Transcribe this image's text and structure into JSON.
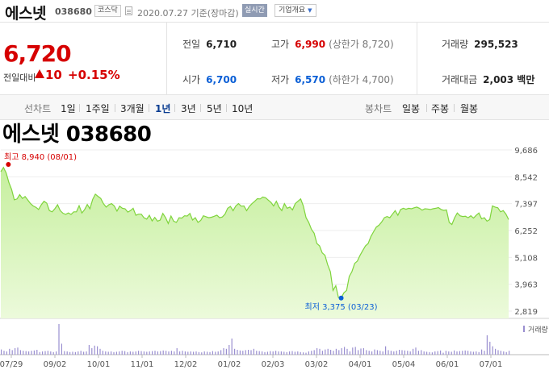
{
  "header": {
    "stock_name": "에스넷",
    "stock_code": "038680",
    "market": "코스닥",
    "date_text": "2020.07.27 기준(장마감)",
    "realtime_label": "실시간",
    "company_overview_label": "기업개요"
  },
  "price": {
    "current": "6,720",
    "change_label": "전일대비",
    "change_value": "10",
    "change_rate": "+0.15%"
  },
  "stats": {
    "prev_close_label": "전일",
    "prev_close": "6,710",
    "open_label": "시가",
    "open": "6,700",
    "high_label": "고가",
    "high": "6,990",
    "upper_limit": "(상한가 8,720)",
    "low_label": "저가",
    "low": "6,570",
    "lower_limit": "(하한가 4,700)",
    "volume_label": "거래량",
    "volume": "295,523",
    "amount_label": "거래대금",
    "amount": "2,003 백만"
  },
  "tabs": {
    "line_group": "선차트",
    "line_periods": [
      "1일",
      "1주일",
      "3개월",
      "1년",
      "3년",
      "5년",
      "10년"
    ],
    "active_period": "1년",
    "candle_group": "봉차트",
    "candle_periods": [
      "일봉",
      "주봉",
      "월봉"
    ]
  },
  "colors": {
    "price_up": "#d60000",
    "price_down": "#0b5fd6",
    "area_fill_top": "#c6ef9e",
    "area_fill_bottom": "#ecfadb",
    "line": "#7fd43c",
    "volume_bar": "#9a8fd0"
  },
  "chart_data": {
    "type": "area",
    "title": "에스넷 038680",
    "x_tick_labels": [
      "07/29",
      "09/02",
      "10/01",
      "11/01",
      "12/02",
      "01/02",
      "02/03",
      "03/02",
      "04/01",
      "05/04",
      "06/01",
      "07/01"
    ],
    "y_ticks": [
      9686,
      8542,
      7397,
      6252,
      5108,
      3963,
      2819
    ],
    "y_tick_labels": [
      "9,686",
      "8,542",
      "7,397",
      "6,252",
      "5,108",
      "3,963",
      "2,819"
    ],
    "ylim": [
      2819,
      9686
    ],
    "high_label": "최고 8,940 (08/01)",
    "low_label": "최저 3,375 (03/23)",
    "series": [
      {
        "values": [
          8760,
          8940,
          8700,
          8300,
          8000,
          7560,
          7600,
          7780,
          7620,
          7700,
          7550,
          7400,
          7300,
          7240,
          7150,
          7350,
          7500,
          7420,
          7100,
          7050,
          7180,
          7350,
          7100,
          6990,
          6940,
          7000,
          6940,
          7050,
          7050,
          7310,
          7000,
          7140,
          7360,
          7180,
          7580,
          7800,
          7710,
          7620,
          7400,
          7250,
          7350,
          7400,
          7300,
          7080,
          7290,
          7200,
          7180,
          7040,
          7100,
          7200,
          6900,
          6950,
          6950,
          6800,
          6740,
          6900,
          6660,
          6810,
          6650,
          6700,
          6980,
          6800,
          6550,
          6870,
          6650,
          6600,
          6800,
          6780,
          6880,
          6870,
          6980,
          6700,
          6800,
          6600,
          6680,
          6880,
          6840,
          6800,
          6820,
          6860,
          6910,
          6800,
          6830,
          6950,
          7200,
          7280,
          7100,
          7300,
          7400,
          7290,
          7300,
          7100,
          7280,
          7400,
          7500,
          7610,
          7600,
          7680,
          7650,
          7550,
          7450,
          7300,
          7500,
          7250,
          7100,
          7400,
          7200,
          7250,
          7130,
          7400,
          7500,
          7600,
          7300,
          6800,
          6600,
          6300,
          6140,
          5700,
          5600,
          5300,
          5200,
          4800,
          4500,
          3700,
          3900,
          3400,
          3375,
          3600,
          3700,
          4300,
          4500,
          4850,
          4950,
          5200,
          5400,
          5600,
          5700,
          6000,
          6200,
          6400,
          6480,
          6620,
          6800,
          6850,
          6800,
          6950,
          7100,
          6900,
          7150,
          7200,
          7160,
          7200,
          7180,
          7220,
          7250,
          7200,
          7120,
          7180,
          7170,
          7150,
          7180,
          7200,
          7230,
          7150,
          7110,
          7130,
          6600,
          6510,
          6800,
          7000,
          6880,
          6850,
          6860,
          6800,
          6880,
          6780,
          6900,
          7000,
          6750,
          6800,
          6650,
          6720,
          7300,
          7250,
          7220,
          7050,
          7100,
          6950,
          6720
        ]
      }
    ],
    "volume_series_label": "거래량",
    "volume": [
      0.16,
      0.12,
      0.1,
      0.18,
      0.14,
      0.2,
      0.22,
      0.14,
      0.12,
      0.11,
      0.1,
      0.12,
      0.13,
      0.15,
      0.08,
      0.1,
      0.11,
      0.12,
      0.1,
      0.08,
      0.1,
      0.95,
      0.34,
      0.11,
      0.1,
      0.08,
      0.09,
      0.08,
      0.1,
      0.12,
      0.09,
      0.1,
      0.3,
      0.2,
      0.28,
      0.26,
      0.18,
      0.12,
      0.1,
      0.09,
      0.1,
      0.08,
      0.09,
      0.1,
      0.12,
      0.11,
      0.08,
      0.1,
      0.09,
      0.1,
      0.12,
      0.11,
      0.1,
      0.09,
      0.1,
      0.11,
      0.12,
      0.1,
      0.11,
      0.13,
      0.12,
      0.1,
      0.12,
      0.1,
      0.2,
      0.1,
      0.12,
      0.1,
      0.09,
      0.1,
      0.09,
      0.1,
      0.08,
      0.07,
      0.1,
      0.09,
      0.08,
      0.11,
      0.09,
      0.1,
      0.14,
      0.2,
      0.18,
      0.3,
      0.5,
      0.18,
      0.15,
      0.13,
      0.12,
      0.14,
      0.15,
      0.14,
      0.18,
      0.12,
      0.11,
      0.1,
      0.08,
      0.09,
      0.11,
      0.1,
      0.12,
      0.1,
      0.1,
      0.09,
      0.08,
      0.1,
      0.11,
      0.09,
      0.1,
      0.08,
      0.07,
      0.06,
      0.1,
      0.12,
      0.14,
      0.2,
      0.18,
      0.12,
      0.16,
      0.18,
      0.15,
      0.12,
      0.18,
      0.14,
      0.2,
      0.24,
      0.18,
      0.1,
      0.22,
      0.24,
      0.14,
      0.19,
      0.2,
      0.14,
      0.12,
      0.1,
      0.16,
      0.14,
      0.12,
      0.1,
      0.26,
      0.14,
      0.12,
      0.1,
      0.12,
      0.15,
      0.14,
      0.13,
      0.12,
      0.1,
      0.18,
      0.22,
      0.12,
      0.14,
      0.1,
      0.09,
      0.08,
      0.07,
      0.1,
      0.11,
      0.13,
      0.06,
      0.12,
      0.1,
      0.09,
      0.13,
      0.1,
      0.11,
      0.12,
      0.13,
      0.12,
      0.1,
      0.09,
      0.1,
      0.08,
      0.16,
      0.12,
      0.6,
      0.4,
      0.26,
      0.18,
      0.14,
      0.12,
      0.1,
      0.08,
      0.12
    ]
  }
}
